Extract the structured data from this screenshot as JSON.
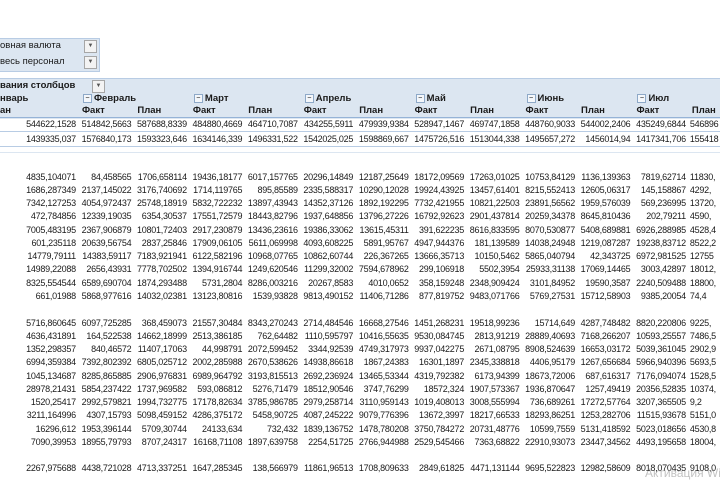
{
  "filters": [
    {
      "value": "овная валюта",
      "icon": "dropdown-icon"
    },
    {
      "value": "весь персонал",
      "icon": "filter-applied-icon"
    }
  ],
  "column_labels_header": "вания столбцов",
  "months": [
    "нварь",
    "Февраль",
    "Март",
    "Апрель",
    "Май",
    "Июнь",
    "Июл"
  ],
  "plan_label": "План",
  "fact_label": "Факт",
  "jan_plan_clipped": "ан",
  "totals": [
    [
      "544622,1528",
      "514842,5663",
      "587688,8339",
      "484880,4669",
      "464710,7087",
      "434255,5911",
      "479939,9384",
      "528947,1467",
      "469747,1858",
      "448760,9033",
      "544002,2406",
      "435249,6844",
      "546896"
    ],
    [
      "1439335,037",
      "1576840,173",
      "1593323,646",
      "1634146,339",
      "1496331,522",
      "1542025,025",
      "1598869,667",
      "1475726,516",
      "1513044,338",
      "1495657,272",
      "1456014,94",
      "1417341,706",
      "155418"
    ]
  ],
  "groups": [
    [
      [
        "4835,104071",
        "84,458565",
        "1706,658114",
        "19436,18177",
        "6017,157765",
        "20296,14849",
        "12187,25649",
        "18172,09569",
        "17263,01025",
        "10753,84129",
        "1136,139363",
        "7819,62714",
        "11830,"
      ],
      [
        "1686,287349",
        "2137,145022",
        "3176,740692",
        "1714,119765",
        "895,85589",
        "2335,588317",
        "10290,12028",
        "19924,43925",
        "13457,61401",
        "8215,552413",
        "12605,06317",
        "145,158867",
        "4292,"
      ],
      [
        "7342,127253",
        "4054,972437",
        "25748,18919",
        "5832,722232",
        "13897,43943",
        "14352,37126",
        "1892,192295",
        "7732,421955",
        "10821,22503",
        "23891,56562",
        "1959,576039",
        "569,236995",
        "13720,"
      ],
      [
        "472,784856",
        "12339,19035",
        "6354,30537",
        "17551,72579",
        "18443,82796",
        "1937,648856",
        "13796,27226",
        "16792,92623",
        "2901,437814",
        "20259,34378",
        "8645,810436",
        "202,79211",
        "4590,"
      ],
      [
        "7005,483195",
        "2367,906879",
        "10801,72403",
        "2917,230879",
        "13436,23616",
        "19386,33062",
        "13615,45311",
        "391,622235",
        "8616,833595",
        "8070,530877",
        "5408,689881",
        "6926,288985",
        "4528,4"
      ],
      [
        "601,235118",
        "20639,56754",
        "2837,25846",
        "17909,06105",
        "5611,069998",
        "4093,608225",
        "5891,95767",
        "4947,944376",
        "181,139589",
        "14038,24948",
        "1219,087287",
        "19238,83712",
        "8522,2"
      ],
      [
        "14779,79111",
        "14383,59117",
        "7183,921941",
        "6122,582196",
        "10968,07765",
        "10862,60744",
        "226,367265",
        "13666,35713",
        "10150,5462",
        "5865,040794",
        "42,343725",
        "6972,981525",
        "12755"
      ],
      [
        "14989,22088",
        "2656,43931",
        "7778,702502",
        "1394,916744",
        "1249,620546",
        "11299,32002",
        "7594,678962",
        "299,106918",
        "5502,3954",
        "25933,31138",
        "17069,14465",
        "3003,42897",
        "18012,"
      ],
      [
        "8325,554544",
        "6589,690704",
        "1874,293488",
        "5731,2804",
        "8286,003216",
        "20267,8583",
        "4010,0652",
        "358,159248",
        "2348,909424",
        "3101,84952",
        "19590,3587",
        "2240,509488",
        "18800,"
      ],
      [
        "661,01988",
        "5868,977616",
        "14032,02381",
        "13123,80816",
        "1539,93828",
        "9813,490152",
        "11406,71286",
        "877,819752",
        "9483,071766",
        "5769,27531",
        "15712,58903",
        "9385,20054",
        "74,4"
      ]
    ],
    [
      [
        "5716,860645",
        "6097,725285",
        "368,459073",
        "21557,30484",
        "8343,270243",
        "2714,484546",
        "16668,27546",
        "1451,268231",
        "19518,99236",
        "15714,649",
        "4287,748482",
        "8820,220806",
        "9225,"
      ],
      [
        "4636,431891",
        "164,522538",
        "14662,18999",
        "2513,386185",
        "762,64482",
        "1110,595797",
        "10416,55635",
        "9530,084745",
        "2813,91219",
        "28889,40693",
        "7168,266207",
        "10593,25557",
        "7486,5"
      ],
      [
        "1352,298357",
        "840,46572",
        "11407,17063",
        "44,998791",
        "2072,599452",
        "3344,92539",
        "4749,317973",
        "9937,042275",
        "2671,08795",
        "8908,524639",
        "16653,03172",
        "5039,361045",
        "2902,9"
      ],
      [
        "6994,359384",
        "7392,802392",
        "6805,025712",
        "2002,285988",
        "2670,538626",
        "14938,86618",
        "1867,24383",
        "16301,1897",
        "2345,338818",
        "4406,95179",
        "1267,656684",
        "5966,940396",
        "5693,5"
      ],
      [
        "1045,134687",
        "8285,865885",
        "2906,976831",
        "6989,964792",
        "3193,815513",
        "2692,236924",
        "13465,53344",
        "4319,792382",
        "6173,94399",
        "18673,72006",
        "687,616317",
        "7176,094074",
        "1528,5"
      ],
      [
        "28978,21431",
        "5854,237422",
        "1737,969582",
        "593,086812",
        "5276,71479",
        "18512,90546",
        "3747,76299",
        "18572,324",
        "1907,573367",
        "1936,870647",
        "1257,49419",
        "20356,52835",
        "10374,"
      ],
      [
        "1520,25417",
        "2992,579821",
        "1994,732775",
        "17178,82634",
        "3785,986785",
        "2979,258714",
        "3110,959143",
        "1019,408013",
        "3008,555994",
        "736,689261",
        "17272,57764",
        "3207,365505",
        "9,2"
      ],
      [
        "3211,164996",
        "4307,15793",
        "5098,459152",
        "4286,375172",
        "5458,90725",
        "4087,245222",
        "9079,776396",
        "13672,3997",
        "18217,66533",
        "18293,86251",
        "1253,282706",
        "11515,93678",
        "5151,0"
      ],
      [
        "16296,612",
        "1953,396144",
        "5709,30744",
        "24133,634",
        "732,432",
        "1839,136752",
        "1478,780208",
        "3750,784272",
        "20731,48776",
        "10599,7559",
        "5131,418592",
        "5023,018656",
        "4530,8"
      ],
      [
        "7090,39953",
        "18955,79793",
        "8707,24317",
        "16168,71108",
        "1897,639758",
        "2254,51725",
        "2766,944988",
        "2529,545466",
        "7363,68822",
        "22910,93073",
        "23447,34562",
        "4493,195658",
        "18004,"
      ]
    ],
    [
      [
        "2267,975688",
        "4438,721028",
        "4713,337251",
        "1647,285345",
        "138,566979",
        "11861,96513",
        "1708,809633",
        "2849,61825",
        "4471,131144",
        "9695,522823",
        "12982,58609",
        "8018,070435",
        "9108,0"
      ]
    ]
  ],
  "watermark": "Активация Win"
}
